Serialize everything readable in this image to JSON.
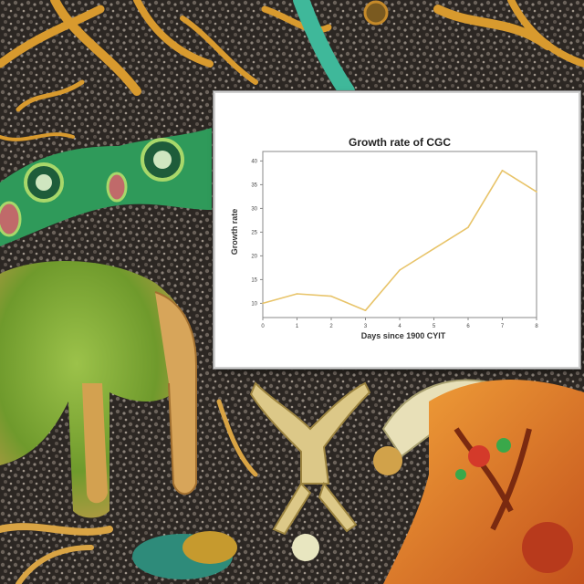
{
  "chart_data": {
    "type": "line",
    "title": "Growth rate of CGC",
    "xlabel": "Days since 1900 CYIT",
    "ylabel": "Growth rate",
    "x": [
      0,
      1,
      2,
      3,
      4,
      5,
      6,
      7,
      8
    ],
    "series": [
      {
        "values": [
          10,
          12,
          11.5,
          8.5,
          17,
          21.5,
          26,
          38,
          33.5
        ],
        "color": "#e8c46a"
      }
    ],
    "x_ticks": [
      "0",
      "1",
      "2",
      "3",
      "4",
      "5",
      "6",
      "7",
      "8"
    ],
    "y_ticks": [
      "10",
      "15",
      "20",
      "25",
      "30",
      "35",
      "40"
    ],
    "xlim": [
      0,
      8
    ],
    "ylim": [
      7,
      42
    ],
    "grid": false,
    "legend": "none"
  },
  "colors": {
    "line": "#e8c46a",
    "axis": "#888888",
    "panel_background": "#ffffff"
  }
}
